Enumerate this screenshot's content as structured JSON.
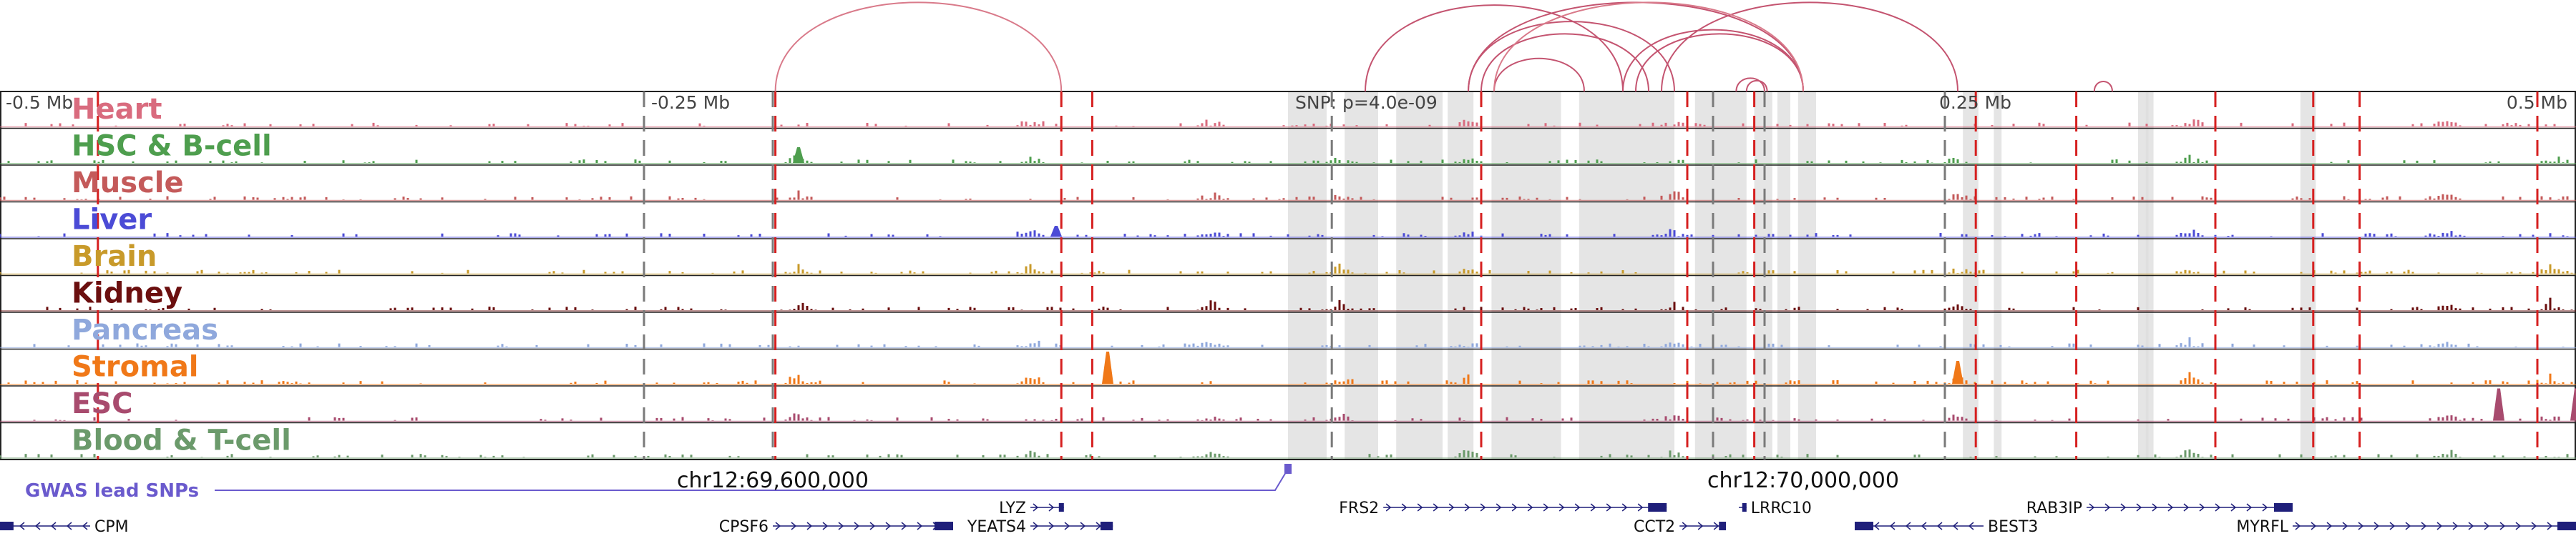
{
  "ruler": {
    "ticks": [
      {
        "label": "-0.5 Mb",
        "pos": -0.5
      },
      {
        "label": "-0.25 Mb",
        "pos": -0.25
      },
      {
        "label": "0.25 Mb",
        "pos": 0.25
      },
      {
        "label": "0.5 Mb",
        "pos": 0.5
      }
    ],
    "snp_label": "SNP: p=4.0e-09",
    "snp_pos": 0.0
  },
  "tracks": [
    {
      "name": "Heart",
      "color": "#d96b7e"
    },
    {
      "name": "HSC & B-cell",
      "color": "#4e9e4e"
    },
    {
      "name": "Muscle",
      "color": "#c45a5a"
    },
    {
      "name": "Liver",
      "color": "#4b4bd6"
    },
    {
      "name": "Brain",
      "color": "#c89a2a"
    },
    {
      "name": "Kidney",
      "color": "#6b0f0f"
    },
    {
      "name": "Pancreas",
      "color": "#8fa8dc"
    },
    {
      "name": "Stromal",
      "color": "#f07818"
    },
    {
      "name": "ESC",
      "color": "#a84b6e"
    },
    {
      "name": "Blood & T-cell",
      "color": "#6b9a6b"
    }
  ],
  "gwas": {
    "label": "GWAS lead SNPs",
    "color": "#6a5acd",
    "snp_pos": 0.0
  },
  "coordinates": [
    {
      "label": "chr12:69,600,000",
      "pos": -0.2
    },
    {
      "label": "chr12:70,000,000",
      "pos": 0.2
    }
  ],
  "genes": [
    {
      "name": "CPM",
      "start": -0.5,
      "end": -0.465,
      "strand": "-",
      "label_side": "right",
      "row": 2
    },
    {
      "name": "CPSF6",
      "start": -0.2,
      "end": -0.13,
      "strand": "+",
      "label_side": "left",
      "row": 2
    },
    {
      "name": "LYZ",
      "start": -0.1,
      "end": -0.087,
      "strand": "+",
      "label_side": "left",
      "row": 1
    },
    {
      "name": "YEATS4",
      "start": -0.1,
      "end": -0.068,
      "strand": "+",
      "label_side": "left",
      "row": 2
    },
    {
      "name": "FRS2",
      "start": 0.037,
      "end": 0.147,
      "strand": "+",
      "label_side": "left",
      "row": 1
    },
    {
      "name": "CCT2",
      "start": 0.152,
      "end": 0.17,
      "strand": "+",
      "label_side": "left",
      "row": 2
    },
    {
      "name": "LRRC10",
      "start": 0.175,
      "end": 0.178,
      "strand": "+",
      "label_side": "right",
      "row": 1
    },
    {
      "name": "BEST3",
      "start": 0.22,
      "end": 0.27,
      "strand": "-",
      "label_side": "right",
      "row": 2
    },
    {
      "name": "RAB3IP",
      "start": 0.31,
      "end": 0.39,
      "strand": "+",
      "label_side": "left",
      "row": 1
    },
    {
      "name": "MYRFL",
      "start": 0.39,
      "end": 0.5,
      "strand": "+",
      "label_side": "left",
      "row": 2
    }
  ],
  "loops": [
    {
      "from": -0.199,
      "to": -0.088,
      "color": "#d97a8a"
    },
    {
      "from": 0.03,
      "to": 0.13,
      "color": "#c45470"
    },
    {
      "from": 0.07,
      "to": 0.15,
      "color": "#c45470"
    },
    {
      "from": 0.07,
      "to": 0.2,
      "color": "#c45470"
    },
    {
      "from": 0.075,
      "to": 0.14,
      "color": "#c45470"
    },
    {
      "from": 0.08,
      "to": 0.115,
      "color": "#c45470"
    },
    {
      "from": 0.13,
      "to": 0.2,
      "color": "#c45470"
    },
    {
      "from": 0.135,
      "to": 0.2,
      "color": "#c45470"
    },
    {
      "from": 0.145,
      "to": 0.26,
      "color": "#c45470"
    },
    {
      "from": 0.174,
      "to": 0.185,
      "color": "#c45470"
    },
    {
      "from": 0.178,
      "to": 0.186,
      "color": "#c45470"
    },
    {
      "from": 0.313,
      "to": 0.32,
      "color": "#c45470"
    },
    {
      "from": 0.08,
      "to": 0.2,
      "color": "#d97a8a"
    }
  ],
  "red_dashed_lines": [
    -0.462,
    -0.199,
    -0.088,
    -0.076,
    0.075,
    0.155,
    0.181,
    0.267,
    0.306,
    0.36,
    0.398,
    0.416,
    0.485
  ],
  "gray_dashed_lines": [
    -0.25,
    -0.2,
    0.017,
    0.165,
    0.185,
    0.255
  ],
  "gray_bands": [
    0.0,
    0.015,
    0.022,
    0.035,
    0.042,
    0.06,
    0.062,
    0.072,
    0.079,
    0.106,
    0.113,
    0.15,
    0.158,
    0.178,
    0.181,
    0.188,
    0.19,
    0.195,
    0.198,
    0.205,
    0.262,
    0.268,
    0.274,
    0.277,
    0.33,
    0.334,
    0.333,
    0.336,
    0.393,
    0.399
  ]
}
